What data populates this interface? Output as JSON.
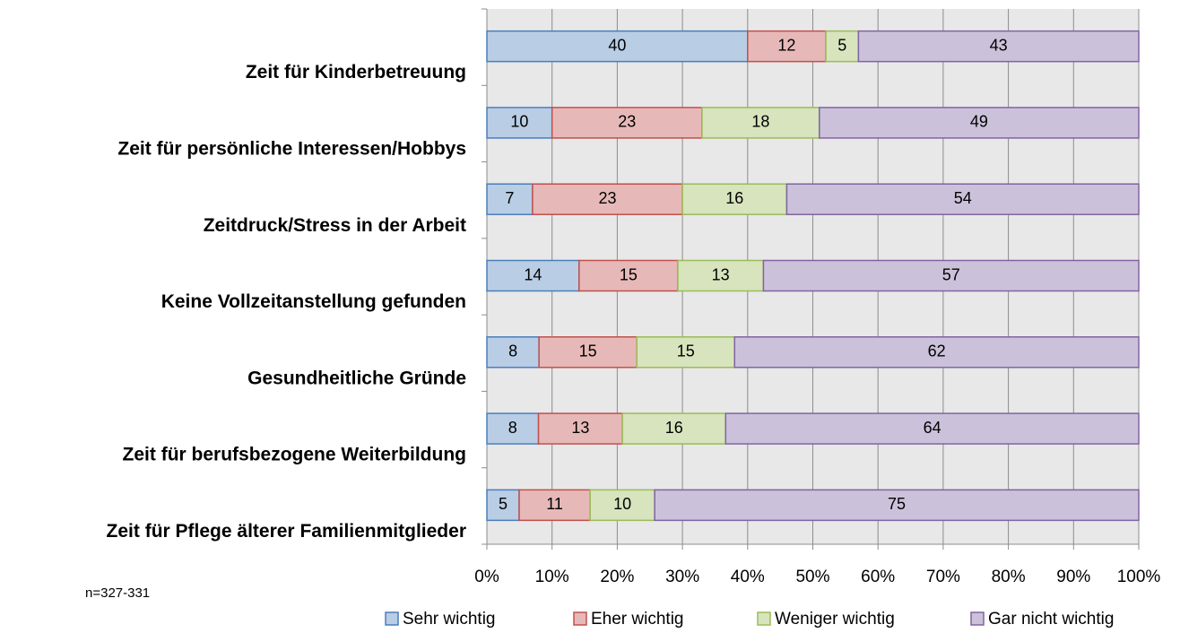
{
  "chart_data": {
    "type": "bar",
    "orientation": "horizontal",
    "stacked": "percent",
    "categories": [
      "Zeit für Kinderbetreuung",
      "Zeit für persönliche Interessen/Hobbys",
      "Zeitdruck/Stress in der Arbeit",
      "Keine Vollzeitanstellung gefunden",
      "Gesundheitliche Gründe",
      "Zeit für berufsbezogene Weiterbildung",
      "Zeit für Pflege älterer Familienmitglieder"
    ],
    "series": [
      {
        "name": "Sehr wichtig",
        "color": "#b9cde5",
        "border": "#4a7ebb",
        "values": [
          40,
          10,
          7,
          14,
          8,
          8,
          5
        ]
      },
      {
        "name": "Eher wichtig",
        "color": "#e6b9b8",
        "border": "#c0504d",
        "values": [
          12,
          23,
          23,
          15,
          15,
          13,
          11
        ]
      },
      {
        "name": "Weniger wichtig",
        "color": "#d7e4bd",
        "border": "#9bbb59",
        "values": [
          5,
          18,
          16,
          13,
          15,
          16,
          10
        ]
      },
      {
        "name": "Gar nicht wichtig",
        "color": "#ccc1da",
        "border": "#8064a2",
        "values": [
          43,
          49,
          54,
          57,
          62,
          64,
          75
        ]
      }
    ],
    "xlim": [
      0,
      100
    ],
    "xticks": [
      {
        "value": 0,
        "label": "0%"
      },
      {
        "value": 10,
        "label": "10%"
      },
      {
        "value": 20,
        "label": "20%"
      },
      {
        "value": 30,
        "label": "30%"
      },
      {
        "value": 40,
        "label": "40%"
      },
      {
        "value": 50,
        "label": "50%"
      },
      {
        "value": 60,
        "label": "60%"
      },
      {
        "value": 70,
        "label": "70%"
      },
      {
        "value": 80,
        "label": "80%"
      },
      {
        "value": 90,
        "label": "90%"
      },
      {
        "value": 100,
        "label": "100%"
      }
    ],
    "grid": true,
    "legend": "bottom",
    "annotation": "n=327-331"
  }
}
